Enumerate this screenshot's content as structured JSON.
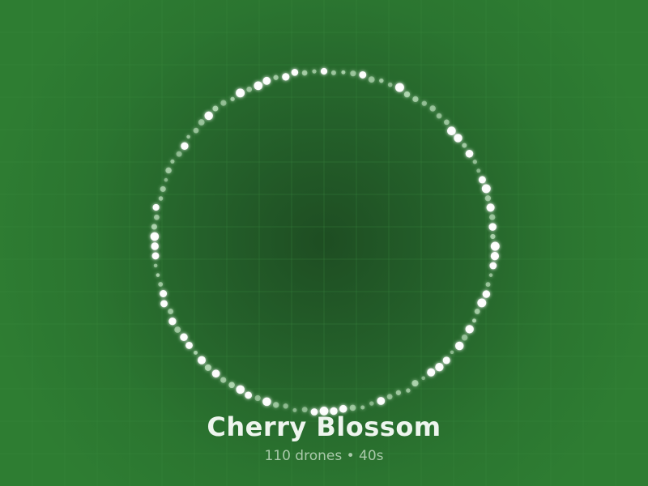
{
  "show": {
    "title": "Cherry Blossom",
    "drone_count": 110,
    "subtitle": "110 drones • 40s"
  },
  "colors": {
    "background": "#2e7d32",
    "background_center": "#1e4d22",
    "grid_line": "#3a8a3e",
    "drone_bright": "#ffffff",
    "drone_dim": "#b8dcb8",
    "title_text": "#eef5ee",
    "subtitle_text": "#a9c9aa"
  },
  "formation": {
    "shape": "ring"
  }
}
